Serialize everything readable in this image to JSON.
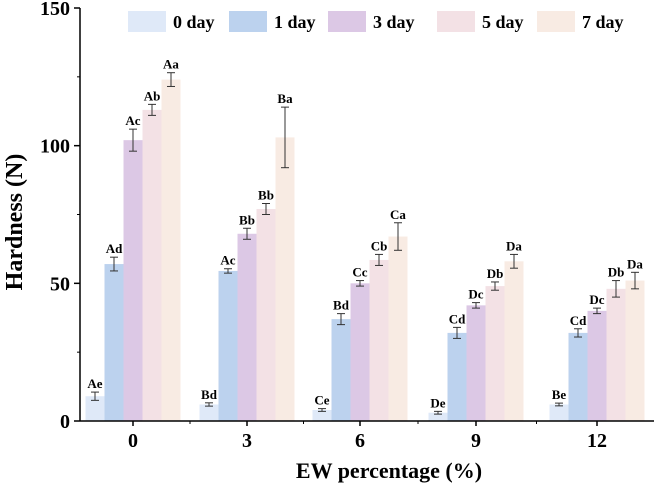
{
  "chart_data": {
    "type": "bar",
    "xlabel": "EW percentage (%)",
    "ylabel": "Hardness (N)",
    "categories": [
      "0",
      "3",
      "6",
      "9",
      "12"
    ],
    "ylim": [
      0,
      150
    ],
    "yticks": [
      "0",
      "50",
      "100",
      "150"
    ],
    "legend_position": "top",
    "grid": false,
    "series": [
      {
        "name": "0 day",
        "color": "#dfe9f8",
        "values": [
          9,
          6,
          4,
          3,
          6
        ],
        "errors": [
          1.5,
          0.6,
          0.5,
          0.5,
          0.5
        ],
        "labels": [
          "Ae",
          "Bd",
          "Ce",
          "De",
          "Be"
        ]
      },
      {
        "name": "1 day",
        "color": "#bcd2ee",
        "values": [
          57,
          54.5,
          37,
          32,
          32
        ],
        "errors": [
          2.5,
          0.8,
          2,
          2,
          1.5
        ],
        "labels": [
          "Ad",
          "Ac",
          "Bd",
          "Cd",
          "Cd"
        ]
      },
      {
        "name": "3 day",
        "color": "#dcc8e5",
        "values": [
          102,
          68,
          50,
          42,
          40
        ],
        "errors": [
          4,
          2,
          1,
          1,
          1
        ],
        "labels": [
          "Ac",
          "Bb",
          "Cc",
          "Dc",
          "Dc"
        ]
      },
      {
        "name": "5 day",
        "color": "#f3e1e5",
        "values": [
          113,
          77,
          58.5,
          49,
          48
        ],
        "errors": [
          2,
          2,
          2,
          1.5,
          3
        ],
        "labels": [
          "Ab",
          "Bb",
          "Cb",
          "Db",
          "Db"
        ]
      },
      {
        "name": "7 day",
        "color": "#f8ebe3",
        "values": [
          124,
          103,
          67,
          58,
          51
        ],
        "errors": [
          2.5,
          11,
          5,
          2.5,
          3
        ],
        "labels": [
          "Aa",
          "Ba",
          "Ca",
          "Da",
          "Da"
        ]
      }
    ]
  }
}
